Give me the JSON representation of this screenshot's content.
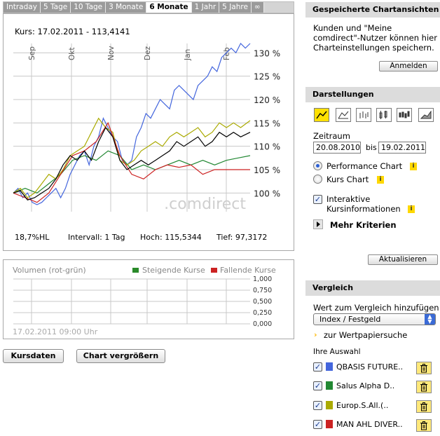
{
  "tabs": [
    "Intraday",
    "5 Tage",
    "10 Tage",
    "3 Monate",
    "6 Monate",
    "1 Jahr",
    "5 Jahre",
    "∞"
  ],
  "active_tab": "6 Monate",
  "chart": {
    "kurs": "Kurs: 17.02.2011 - 113,4141",
    "watermark": ".comdirect",
    "stats": {
      "hl": "18,7%HL",
      "intervall": "Intervall: 1 Tag",
      "hoch": "Hoch: 115,5344",
      "tief": "Tief: 97,3172"
    }
  },
  "chart_data": {
    "type": "line",
    "x_labels": [
      "Sep",
      "Okt",
      "Nov",
      "Dez",
      "Jan",
      "Feb"
    ],
    "y_ticks": [
      "100 %",
      "105 %",
      "110 %",
      "115 %",
      "120 %",
      "125 %",
      "130 %"
    ],
    "ylim": [
      96,
      132
    ],
    "xlim": [
      0,
      1
    ],
    "grid": true,
    "series": [
      {
        "name": "QBASIS FUTURE..",
        "color": "#4466dd",
        "x": [
          0,
          0.02,
          0.04,
          0.06,
          0.08,
          0.1,
          0.12,
          0.14,
          0.16,
          0.18,
          0.2,
          0.22,
          0.24,
          0.26,
          0.28,
          0.3,
          0.32,
          0.34,
          0.36,
          0.38,
          0.4,
          0.42,
          0.44,
          0.46,
          0.48,
          0.5,
          0.52,
          0.54,
          0.56,
          0.58,
          0.6,
          0.62,
          0.64,
          0.66,
          0.68,
          0.7,
          0.72,
          0.74,
          0.76,
          0.78,
          0.8,
          0.82,
          0.84,
          0.86,
          0.88,
          0.9,
          0.92,
          0.94,
          0.96,
          0.98,
          1
        ],
        "y": [
          100,
          101,
          99,
          100,
          98,
          97.5,
          98,
          99,
          100,
          101,
          99,
          101,
          104,
          106,
          108,
          109,
          106,
          110,
          112,
          116,
          114,
          112,
          111,
          107,
          106,
          107,
          112,
          114,
          117,
          116,
          118,
          120,
          119,
          118,
          122,
          123,
          122,
          121,
          120,
          123,
          124,
          125,
          127,
          126,
          129,
          130,
          131,
          130,
          132,
          131,
          132
        ]
      },
      {
        "name": "Salus Alpha D..",
        "color": "#228833",
        "x": [
          0,
          0.05,
          0.1,
          0.15,
          0.2,
          0.25,
          0.3,
          0.35,
          0.4,
          0.45,
          0.5,
          0.55,
          0.6,
          0.65,
          0.7,
          0.75,
          0.8,
          0.85,
          0.9,
          0.95,
          1
        ],
        "y": [
          100,
          101,
          100,
          102,
          104,
          107,
          108,
          107,
          109,
          108,
          105,
          106,
          105,
          106,
          107,
          106,
          107,
          106,
          107,
          107.5,
          108
        ]
      },
      {
        "name": "Europ.S.All.(..",
        "color": "#aaaa00",
        "x": [
          0,
          0.03,
          0.06,
          0.09,
          0.12,
          0.15,
          0.18,
          0.21,
          0.24,
          0.27,
          0.3,
          0.33,
          0.36,
          0.39,
          0.42,
          0.45,
          0.48,
          0.51,
          0.54,
          0.57,
          0.6,
          0.63,
          0.66,
          0.69,
          0.72,
          0.75,
          0.78,
          0.81,
          0.84,
          0.87,
          0.9,
          0.93,
          0.96,
          1
        ],
        "y": [
          100,
          101,
          99,
          100,
          102,
          104,
          103,
          105,
          108,
          109,
          110,
          113,
          116,
          114,
          113,
          107,
          106,
          107,
          109,
          110,
          111,
          110,
          112,
          113,
          112,
          113,
          114,
          112,
          113,
          115,
          114,
          115,
          114,
          115.5
        ]
      },
      {
        "name": "MAN AHL DIVER..",
        "color": "#cc2222",
        "x": [
          0,
          0.05,
          0.1,
          0.15,
          0.2,
          0.25,
          0.3,
          0.35,
          0.4,
          0.45,
          0.5,
          0.55,
          0.6,
          0.65,
          0.7,
          0.75,
          0.8,
          0.85,
          0.9,
          0.95,
          1
        ],
        "y": [
          100,
          99,
          98,
          100,
          104,
          108,
          109,
          111,
          115,
          108,
          104,
          103,
          105,
          106,
          105.5,
          106,
          104,
          105,
          105,
          105,
          105
        ]
      },
      {
        "name": "Kurs",
        "color": "#000000",
        "x": [
          0,
          0.03,
          0.06,
          0.09,
          0.12,
          0.15,
          0.18,
          0.21,
          0.24,
          0.27,
          0.3,
          0.33,
          0.36,
          0.39,
          0.42,
          0.45,
          0.48,
          0.51,
          0.54,
          0.57,
          0.6,
          0.63,
          0.66,
          0.69,
          0.72,
          0.75,
          0.78,
          0.81,
          0.84,
          0.87,
          0.9,
          0.93,
          0.96,
          1
        ],
        "y": [
          100,
          100.5,
          98.5,
          99,
          100,
          101,
          103,
          106,
          108,
          107,
          109,
          107,
          111,
          114,
          112,
          107,
          105,
          106,
          107,
          106,
          107,
          108,
          109,
          111,
          110,
          111,
          112,
          110,
          111,
          113,
          112,
          113,
          112,
          113
        ]
      }
    ]
  },
  "volume": {
    "title": "Volumen (rot-grün)",
    "legend_up": "Steigende Kurse",
    "legend_down": "Fallende Kurse",
    "up_color": "#2a8a2a",
    "down_color": "#cc2222",
    "y_ticks": [
      "1,000",
      "0,750",
      "0,500",
      "0,250",
      "0,000"
    ],
    "timestamp": "17.02.2011 09:00 Uhr"
  },
  "buttons": {
    "kursdaten": "Kursdaten",
    "vergroessern": "Chart vergrößern"
  },
  "sidebar": {
    "saved": {
      "title": "Gespeicherte Chartansichten",
      "text1": "Kunden und \"Meine",
      "text2": "comdirect\"-Nutzer können hier",
      "text3": "Charteinstellungen speichern.",
      "login": "Anmelden"
    },
    "darstellungen": {
      "title": "Darstellungen",
      "zeitraum": "Zeitraum",
      "from": "20.08.2010",
      "bis": "bis",
      "to": "19.02.2011",
      "performance": "Performance Chart",
      "kurs": "Kurs Chart",
      "interaktiv1": "Interaktive",
      "interaktiv2": "Kursinformationen",
      "mehr": "Mehr Kriterien",
      "update": "Aktualisieren",
      "info": "i"
    },
    "vergleich": {
      "title": "Vergleich",
      "add_label": "Wert zum Vergleich hinzufügen",
      "select": "Index / Festgeld",
      "search": "zur Wertpapiersuche",
      "auswahl": "Ihre Auswahl",
      "items": [
        {
          "label": "QBASIS FUTURE..",
          "color": "#4466dd"
        },
        {
          "label": "Salus Alpha D..",
          "color": "#228833"
        },
        {
          "label": "Europ.S.All.(..",
          "color": "#aaaa00"
        },
        {
          "label": "MAN AHL DIVER..",
          "color": "#cc2222"
        }
      ]
    }
  }
}
